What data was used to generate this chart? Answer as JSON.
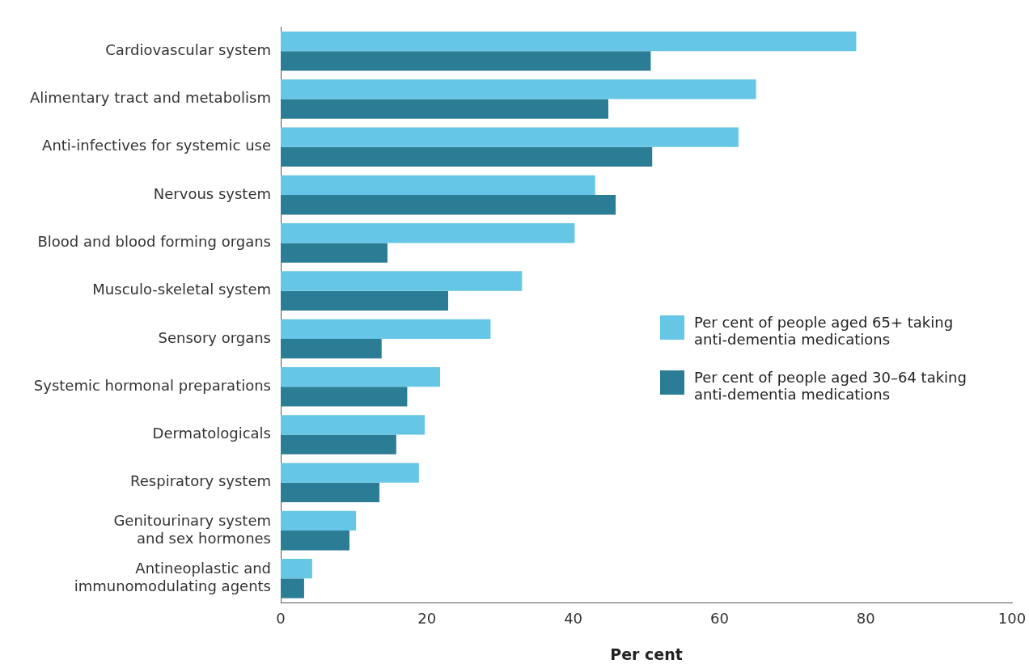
{
  "chart_data": {
    "type": "bar",
    "orientation": "horizontal",
    "xlabel": "Per cent",
    "categories": [
      "Cardiovascular system",
      "Alimentary tract and metabolism",
      "Anti-infectives for systemic use",
      "Nervous system",
      "Blood and blood forming organs",
      "Musculo-skeletal system",
      "Sensory organs",
      "Systemic hormonal preparations",
      "Dermatologicals",
      "Respiratory system",
      "Genitourinary system\nand sex hormones",
      "Antineoplastic and\nimmunomodulating agents"
    ],
    "series": [
      {
        "name": "Per cent of people aged 65+ taking anti-dementia medications",
        "color": "#66c6e6",
        "values": [
          78.7,
          65.0,
          62.6,
          43.0,
          40.2,
          33.0,
          28.7,
          21.8,
          19.7,
          18.9,
          10.3,
          4.3
        ]
      },
      {
        "name": "Per cent of people aged 30–64 taking anti-dementia medications",
        "color": "#2a7d94",
        "values": [
          50.6,
          44.8,
          50.8,
          45.8,
          14.6,
          22.9,
          13.8,
          17.3,
          15.8,
          13.5,
          9.4,
          3.2
        ]
      }
    ],
    "xlim": [
      0,
      100
    ],
    "xticks": [
      0,
      20,
      40,
      60,
      80,
      100
    ],
    "grid": false,
    "legend": "right"
  }
}
